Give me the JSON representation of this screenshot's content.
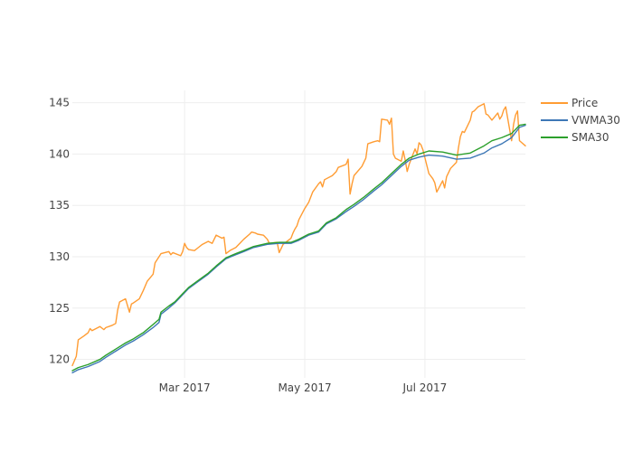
{
  "chart_data": {
    "type": "line",
    "title": "",
    "xlabel": "",
    "ylabel": "",
    "x_start": "2017-01-03",
    "x_end": "2017-08-21",
    "x_ticks": [
      {
        "date": "2017-03-01",
        "label": "Mar 2017"
      },
      {
        "date": "2017-05-01",
        "label": "May 2017"
      },
      {
        "date": "2017-07-01",
        "label": "Jul 2017"
      }
    ],
    "ylim": [
      118.2,
      146.2
    ],
    "y_ticks": [
      120,
      125,
      130,
      135,
      140,
      145
    ],
    "grid": true,
    "legend_position": "top-right",
    "series": [
      {
        "name": "Price",
        "color": "#ff9c33",
        "points": [
          [
            "2017-01-03",
            119.4
          ],
          [
            "2017-01-05",
            120.3
          ],
          [
            "2017-01-06",
            121.9
          ],
          [
            "2017-01-09",
            122.3
          ],
          [
            "2017-01-11",
            122.6
          ],
          [
            "2017-01-12",
            123.0
          ],
          [
            "2017-01-13",
            122.8
          ],
          [
            "2017-01-17",
            123.2
          ],
          [
            "2017-01-19",
            122.9
          ],
          [
            "2017-01-20",
            123.1
          ],
          [
            "2017-01-23",
            123.3
          ],
          [
            "2017-01-25",
            123.5
          ],
          [
            "2017-01-26",
            124.8
          ],
          [
            "2017-01-27",
            125.6
          ],
          [
            "2017-01-30",
            125.9
          ],
          [
            "2017-02-01",
            124.6
          ],
          [
            "2017-02-02",
            125.4
          ],
          [
            "2017-02-03",
            125.5
          ],
          [
            "2017-02-06",
            125.9
          ],
          [
            "2017-02-08",
            126.7
          ],
          [
            "2017-02-10",
            127.6
          ],
          [
            "2017-02-13",
            128.3
          ],
          [
            "2017-02-14",
            129.4
          ],
          [
            "2017-02-16",
            130.0
          ],
          [
            "2017-02-17",
            130.3
          ],
          [
            "2017-02-21",
            130.5
          ],
          [
            "2017-02-22",
            130.2
          ],
          [
            "2017-02-23",
            130.4
          ],
          [
            "2017-02-27",
            130.1
          ],
          [
            "2017-02-28",
            130.5
          ],
          [
            "2017-03-01",
            131.3
          ],
          [
            "2017-03-02",
            130.9
          ],
          [
            "2017-03-03",
            130.7
          ],
          [
            "2017-03-06",
            130.6
          ],
          [
            "2017-03-08",
            130.9
          ],
          [
            "2017-03-10",
            131.2
          ],
          [
            "2017-03-13",
            131.5
          ],
          [
            "2017-03-15",
            131.3
          ],
          [
            "2017-03-17",
            132.1
          ],
          [
            "2017-03-20",
            131.8
          ],
          [
            "2017-03-21",
            131.9
          ],
          [
            "2017-03-22",
            130.3
          ],
          [
            "2017-03-24",
            130.6
          ],
          [
            "2017-03-27",
            130.9
          ],
          [
            "2017-03-29",
            131.3
          ],
          [
            "2017-03-31",
            131.7
          ],
          [
            "2017-04-03",
            132.2
          ],
          [
            "2017-04-04",
            132.4
          ],
          [
            "2017-04-06",
            132.3
          ],
          [
            "2017-04-07",
            132.2
          ],
          [
            "2017-04-10",
            132.1
          ],
          [
            "2017-04-12",
            131.7
          ],
          [
            "2017-04-13",
            131.3
          ],
          [
            "2017-04-17",
            131.4
          ],
          [
            "2017-04-18",
            130.4
          ],
          [
            "2017-04-19",
            130.8
          ],
          [
            "2017-04-20",
            131.2
          ],
          [
            "2017-04-24",
            131.8
          ],
          [
            "2017-04-25",
            132.3
          ],
          [
            "2017-04-26",
            132.7
          ],
          [
            "2017-04-27",
            133.0
          ],
          [
            "2017-04-28",
            133.6
          ],
          [
            "2017-05-01",
            134.7
          ],
          [
            "2017-05-03",
            135.3
          ],
          [
            "2017-05-05",
            136.3
          ],
          [
            "2017-05-08",
            137.1
          ],
          [
            "2017-05-09",
            137.3
          ],
          [
            "2017-05-10",
            136.8
          ],
          [
            "2017-05-11",
            137.5
          ],
          [
            "2017-05-15",
            137.9
          ],
          [
            "2017-05-17",
            138.3
          ],
          [
            "2017-05-18",
            138.7
          ],
          [
            "2017-05-22",
            139.0
          ],
          [
            "2017-05-23",
            139.5
          ],
          [
            "2017-05-24",
            136.1
          ],
          [
            "2017-05-25",
            137.1
          ],
          [
            "2017-05-26",
            137.9
          ],
          [
            "2017-05-30",
            138.8
          ],
          [
            "2017-06-01",
            139.6
          ],
          [
            "2017-06-02",
            141.0
          ],
          [
            "2017-06-05",
            141.2
          ],
          [
            "2017-06-07",
            141.3
          ],
          [
            "2017-06-08",
            141.2
          ],
          [
            "2017-06-09",
            143.4
          ],
          [
            "2017-06-12",
            143.3
          ],
          [
            "2017-06-13",
            142.9
          ],
          [
            "2017-06-14",
            143.5
          ],
          [
            "2017-06-15",
            140.0
          ],
          [
            "2017-06-16",
            139.6
          ],
          [
            "2017-06-19",
            139.3
          ],
          [
            "2017-06-20",
            140.3
          ],
          [
            "2017-06-21",
            139.4
          ],
          [
            "2017-06-22",
            138.3
          ],
          [
            "2017-06-23",
            139.0
          ],
          [
            "2017-06-26",
            140.5
          ],
          [
            "2017-06-27",
            140.0
          ],
          [
            "2017-06-28",
            141.1
          ],
          [
            "2017-06-29",
            140.9
          ],
          [
            "2017-06-30",
            140.4
          ],
          [
            "2017-07-03",
            138.1
          ],
          [
            "2017-07-05",
            137.6
          ],
          [
            "2017-07-06",
            137.2
          ],
          [
            "2017-07-07",
            136.3
          ],
          [
            "2017-07-10",
            137.4
          ],
          [
            "2017-07-11",
            136.7
          ],
          [
            "2017-07-12",
            137.8
          ],
          [
            "2017-07-14",
            138.6
          ],
          [
            "2017-07-17",
            139.2
          ],
          [
            "2017-07-18",
            140.6
          ],
          [
            "2017-07-19",
            141.7
          ],
          [
            "2017-07-20",
            142.2
          ],
          [
            "2017-07-21",
            142.1
          ],
          [
            "2017-07-24",
            143.3
          ],
          [
            "2017-07-25",
            144.1
          ],
          [
            "2017-07-26",
            144.2
          ],
          [
            "2017-07-27",
            144.4
          ],
          [
            "2017-07-28",
            144.6
          ],
          [
            "2017-07-31",
            144.9
          ],
          [
            "2017-08-01",
            143.9
          ],
          [
            "2017-08-02",
            143.8
          ],
          [
            "2017-08-04",
            143.3
          ],
          [
            "2017-08-07",
            144.0
          ],
          [
            "2017-08-08",
            143.4
          ],
          [
            "2017-08-09",
            143.7
          ],
          [
            "2017-08-10",
            144.3
          ],
          [
            "2017-08-11",
            144.6
          ],
          [
            "2017-08-14",
            141.3
          ],
          [
            "2017-08-15",
            142.9
          ],
          [
            "2017-08-16",
            143.8
          ],
          [
            "2017-08-17",
            144.2
          ],
          [
            "2017-08-18",
            141.3
          ],
          [
            "2017-08-21",
            140.8
          ]
        ]
      },
      {
        "name": "VWMA30",
        "color": "#3e78b6",
        "points": [
          [
            "2017-01-03",
            118.7
          ],
          [
            "2017-01-06",
            119.0
          ],
          [
            "2017-01-11",
            119.3
          ],
          [
            "2017-01-17",
            119.8
          ],
          [
            "2017-01-20",
            120.2
          ],
          [
            "2017-01-25",
            120.8
          ],
          [
            "2017-01-30",
            121.4
          ],
          [
            "2017-02-03",
            121.8
          ],
          [
            "2017-02-08",
            122.4
          ],
          [
            "2017-02-13",
            123.1
          ],
          [
            "2017-02-16",
            123.6
          ],
          [
            "2017-02-17",
            124.4
          ],
          [
            "2017-02-21",
            125.0
          ],
          [
            "2017-02-24",
            125.5
          ],
          [
            "2017-02-28",
            126.3
          ],
          [
            "2017-03-03",
            126.9
          ],
          [
            "2017-03-08",
            127.6
          ],
          [
            "2017-03-13",
            128.3
          ],
          [
            "2017-03-17",
            129.0
          ],
          [
            "2017-03-22",
            129.8
          ],
          [
            "2017-03-27",
            130.2
          ],
          [
            "2017-03-31",
            130.5
          ],
          [
            "2017-04-05",
            130.9
          ],
          [
            "2017-04-12",
            131.2
          ],
          [
            "2017-04-18",
            131.3
          ],
          [
            "2017-04-24",
            131.3
          ],
          [
            "2017-04-28",
            131.6
          ],
          [
            "2017-05-03",
            132.1
          ],
          [
            "2017-05-08",
            132.4
          ],
          [
            "2017-05-12",
            133.2
          ],
          [
            "2017-05-17",
            133.7
          ],
          [
            "2017-05-22",
            134.4
          ],
          [
            "2017-05-26",
            134.9
          ],
          [
            "2017-05-31",
            135.6
          ],
          [
            "2017-06-05",
            136.4
          ],
          [
            "2017-06-09",
            137.0
          ],
          [
            "2017-06-14",
            137.9
          ],
          [
            "2017-06-19",
            138.8
          ],
          [
            "2017-06-23",
            139.4
          ],
          [
            "2017-06-28",
            139.7
          ],
          [
            "2017-07-03",
            139.9
          ],
          [
            "2017-07-10",
            139.8
          ],
          [
            "2017-07-17",
            139.5
          ],
          [
            "2017-07-24",
            139.6
          ],
          [
            "2017-07-31",
            140.1
          ],
          [
            "2017-08-04",
            140.6
          ],
          [
            "2017-08-09",
            141.0
          ],
          [
            "2017-08-14",
            141.6
          ],
          [
            "2017-08-18",
            142.6
          ],
          [
            "2017-08-21",
            142.8
          ]
        ]
      },
      {
        "name": "SMA30",
        "color": "#2ca02c",
        "points": [
          [
            "2017-01-03",
            118.9
          ],
          [
            "2017-01-06",
            119.2
          ],
          [
            "2017-01-11",
            119.5
          ],
          [
            "2017-01-17",
            120.0
          ],
          [
            "2017-01-20",
            120.4
          ],
          [
            "2017-01-25",
            121.0
          ],
          [
            "2017-01-30",
            121.6
          ],
          [
            "2017-02-03",
            122.0
          ],
          [
            "2017-02-08",
            122.6
          ],
          [
            "2017-02-13",
            123.4
          ],
          [
            "2017-02-16",
            123.9
          ],
          [
            "2017-02-17",
            124.6
          ],
          [
            "2017-02-21",
            125.2
          ],
          [
            "2017-02-24",
            125.6
          ],
          [
            "2017-02-28",
            126.4
          ],
          [
            "2017-03-03",
            127.0
          ],
          [
            "2017-03-08",
            127.7
          ],
          [
            "2017-03-13",
            128.4
          ],
          [
            "2017-03-17",
            129.1
          ],
          [
            "2017-03-22",
            129.9
          ],
          [
            "2017-03-27",
            130.3
          ],
          [
            "2017-03-31",
            130.6
          ],
          [
            "2017-04-05",
            131.0
          ],
          [
            "2017-04-12",
            131.3
          ],
          [
            "2017-04-18",
            131.4
          ],
          [
            "2017-04-24",
            131.4
          ],
          [
            "2017-04-28",
            131.7
          ],
          [
            "2017-05-03",
            132.2
          ],
          [
            "2017-05-08",
            132.5
          ],
          [
            "2017-05-12",
            133.3
          ],
          [
            "2017-05-17",
            133.8
          ],
          [
            "2017-05-22",
            134.6
          ],
          [
            "2017-05-26",
            135.1
          ],
          [
            "2017-05-31",
            135.8
          ],
          [
            "2017-06-05",
            136.6
          ],
          [
            "2017-06-09",
            137.2
          ],
          [
            "2017-06-14",
            138.1
          ],
          [
            "2017-06-19",
            139.0
          ],
          [
            "2017-06-23",
            139.6
          ],
          [
            "2017-06-28",
            140.0
          ],
          [
            "2017-07-03",
            140.3
          ],
          [
            "2017-07-10",
            140.2
          ],
          [
            "2017-07-17",
            139.9
          ],
          [
            "2017-07-24",
            140.1
          ],
          [
            "2017-07-31",
            140.8
          ],
          [
            "2017-08-04",
            141.3
          ],
          [
            "2017-08-09",
            141.6
          ],
          [
            "2017-08-14",
            142.0
          ],
          [
            "2017-08-18",
            142.8
          ],
          [
            "2017-08-21",
            142.9
          ]
        ]
      }
    ]
  }
}
